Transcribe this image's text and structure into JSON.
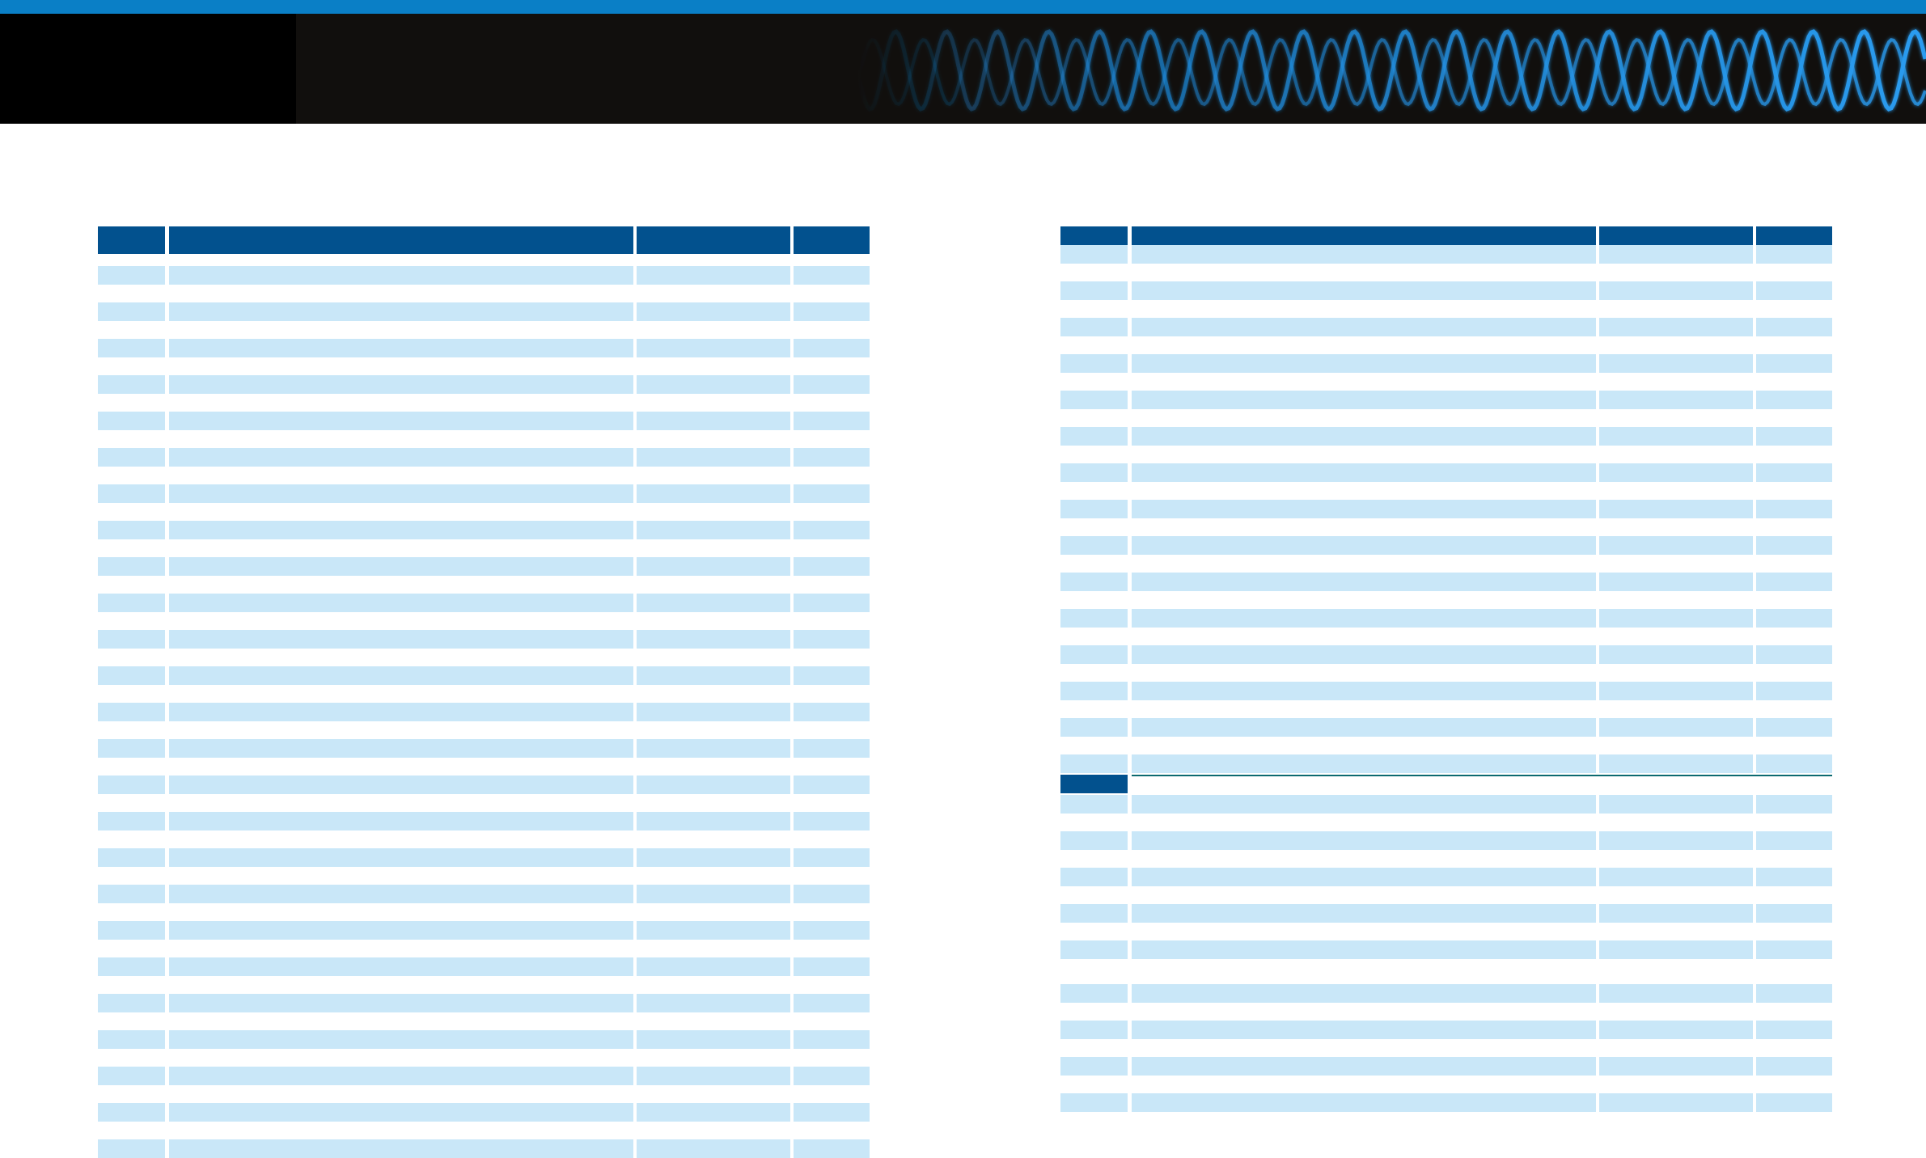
{
  "colors": {
    "top_stripe": "#0a7fc6",
    "banner_background": "#110f0d",
    "banner_left_block": "#000000",
    "wave_color": "#1e88d8",
    "table_header": "#02518e",
    "table_row": "#c9e7f8",
    "section_rule": "#0c6a70"
  },
  "icons": {
    "banner_wave": "sine-wave-graphic"
  },
  "left_table": {
    "header": [
      "",
      "",
      "",
      ""
    ],
    "rows": [
      [
        "",
        "",
        "",
        ""
      ],
      [
        "",
        "",
        "",
        ""
      ],
      [
        "",
        "",
        "",
        ""
      ],
      [
        "",
        "",
        "",
        ""
      ],
      [
        "",
        "",
        "",
        ""
      ],
      [
        "",
        "",
        "",
        ""
      ],
      [
        "",
        "",
        "",
        ""
      ],
      [
        "",
        "",
        "",
        ""
      ],
      [
        "",
        "",
        "",
        ""
      ],
      [
        "",
        "",
        "",
        ""
      ],
      [
        "",
        "",
        "",
        ""
      ],
      [
        "",
        "",
        "",
        ""
      ],
      [
        "",
        "",
        "",
        ""
      ],
      [
        "",
        "",
        "",
        ""
      ],
      [
        "",
        "",
        "",
        ""
      ],
      [
        "",
        "",
        "",
        ""
      ],
      [
        "",
        "",
        "",
        ""
      ],
      [
        "",
        "",
        "",
        ""
      ],
      [
        "",
        "",
        "",
        ""
      ],
      [
        "",
        "",
        "",
        ""
      ],
      [
        "",
        "",
        "",
        ""
      ],
      [
        "",
        "",
        "",
        ""
      ],
      [
        "",
        "",
        "",
        ""
      ],
      [
        "",
        "",
        "",
        ""
      ],
      [
        "",
        "",
        "",
        ""
      ]
    ]
  },
  "right_table": {
    "header": [
      "",
      "",
      "",
      ""
    ],
    "rows_before_section": [
      [
        "",
        "",
        "",
        ""
      ],
      [
        "",
        "",
        "",
        ""
      ],
      [
        "",
        "",
        "",
        ""
      ],
      [
        "",
        "",
        "",
        ""
      ],
      [
        "",
        "",
        "",
        ""
      ],
      [
        "",
        "",
        "",
        ""
      ],
      [
        "",
        "",
        "",
        ""
      ],
      [
        "",
        "",
        "",
        ""
      ],
      [
        "",
        "",
        "",
        ""
      ],
      [
        "",
        "",
        "",
        ""
      ],
      [
        "",
        "",
        "",
        ""
      ],
      [
        "",
        "",
        "",
        ""
      ],
      [
        "",
        "",
        "",
        ""
      ],
      [
        "",
        "",
        "",
        ""
      ],
      [
        "",
        "",
        "",
        ""
      ]
    ],
    "section_label": "",
    "rows_after_section": [
      [
        "",
        "",
        "",
        ""
      ],
      [
        "",
        "",
        "",
        ""
      ],
      [
        "",
        "",
        "",
        ""
      ],
      [
        "",
        "",
        "",
        ""
      ],
      [
        "",
        "",
        "",
        ""
      ],
      [
        "",
        "",
        "",
        ""
      ],
      [
        "",
        "",
        "",
        ""
      ],
      [
        "",
        "",
        "",
        ""
      ],
      [
        "",
        "",
        "",
        ""
      ]
    ]
  }
}
